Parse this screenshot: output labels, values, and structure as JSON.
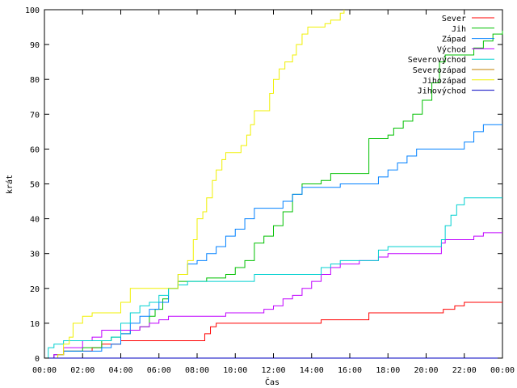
{
  "chart_data": {
    "type": "line",
    "step": true,
    "title": "",
    "xlabel": "Čas",
    "ylabel": "krát",
    "xlim": [
      0,
      24
    ],
    "ylim": [
      0,
      100
    ],
    "x_ticks": [
      "00:00",
      "02:00",
      "04:00",
      "06:00",
      "08:00",
      "10:00",
      "12:00",
      "14:00",
      "16:00",
      "18:00",
      "20:00",
      "22:00",
      "00:00"
    ],
    "y_ticks": [
      0,
      10,
      20,
      30,
      40,
      50,
      60,
      70,
      80,
      90,
      100
    ],
    "grid": false,
    "legend_position": "top-right",
    "series": [
      {
        "name": "Sever",
        "color": "#ff0000",
        "points": [
          [
            0,
            0
          ],
          [
            0.5,
            1
          ],
          [
            1.0,
            2
          ],
          [
            2.5,
            3
          ],
          [
            3.0,
            4
          ],
          [
            4.0,
            5
          ],
          [
            8.0,
            5
          ],
          [
            8.4,
            7
          ],
          [
            8.7,
            9
          ],
          [
            9.0,
            10
          ],
          [
            14.0,
            10
          ],
          [
            14.5,
            11
          ],
          [
            16.5,
            11
          ],
          [
            17.0,
            13
          ],
          [
            20.5,
            13
          ],
          [
            20.9,
            14
          ],
          [
            21.5,
            15
          ],
          [
            22.0,
            16
          ],
          [
            24,
            16
          ]
        ]
      },
      {
        "name": "Jih",
        "color": "#00c000",
        "points": [
          [
            0,
            0
          ],
          [
            0.7,
            1
          ],
          [
            1.0,
            2
          ],
          [
            2.0,
            3
          ],
          [
            3.0,
            5
          ],
          [
            3.5,
            6
          ],
          [
            4.0,
            7
          ],
          [
            4.5,
            8
          ],
          [
            5.0,
            9
          ],
          [
            5.5,
            12
          ],
          [
            5.8,
            14
          ],
          [
            6.2,
            17
          ],
          [
            6.5,
            20
          ],
          [
            7.0,
            22
          ],
          [
            8.0,
            22
          ],
          [
            8.5,
            23
          ],
          [
            9.5,
            24
          ],
          [
            10.0,
            26
          ],
          [
            10.5,
            28
          ],
          [
            11.0,
            33
          ],
          [
            11.5,
            35
          ],
          [
            12.0,
            38
          ],
          [
            12.5,
            42
          ],
          [
            13.0,
            47
          ],
          [
            13.5,
            50
          ],
          [
            14.5,
            51
          ],
          [
            15.0,
            53
          ],
          [
            16.5,
            53
          ],
          [
            17.0,
            63
          ],
          [
            18.0,
            64
          ],
          [
            18.3,
            66
          ],
          [
            18.8,
            68
          ],
          [
            19.3,
            70
          ],
          [
            19.8,
            74
          ],
          [
            20.3,
            79
          ],
          [
            20.7,
            85
          ],
          [
            21.0,
            87
          ],
          [
            22.0,
            87
          ],
          [
            22.5,
            89
          ],
          [
            23.0,
            91
          ],
          [
            23.5,
            93
          ],
          [
            24,
            94
          ]
        ]
      },
      {
        "name": "Západ",
        "color": "#0080ff",
        "points": [
          [
            0,
            0
          ],
          [
            0.5,
            1
          ],
          [
            1.0,
            2
          ],
          [
            3.0,
            3
          ],
          [
            3.5,
            4
          ],
          [
            4.0,
            7
          ],
          [
            4.5,
            10
          ],
          [
            5.0,
            12
          ],
          [
            5.5,
            14
          ],
          [
            6.0,
            16
          ],
          [
            6.5,
            20
          ],
          [
            7.0,
            24
          ],
          [
            7.5,
            27
          ],
          [
            8.0,
            28
          ],
          [
            8.5,
            30
          ],
          [
            9.0,
            32
          ],
          [
            9.5,
            35
          ],
          [
            10.0,
            37
          ],
          [
            10.5,
            40
          ],
          [
            11.0,
            43
          ],
          [
            12.0,
            43
          ],
          [
            12.5,
            45
          ],
          [
            13.0,
            47
          ],
          [
            13.5,
            49
          ],
          [
            15.0,
            49
          ],
          [
            15.5,
            50
          ],
          [
            17.0,
            50
          ],
          [
            17.5,
            52
          ],
          [
            18.0,
            54
          ],
          [
            18.5,
            56
          ],
          [
            19.0,
            58
          ],
          [
            19.5,
            60
          ],
          [
            21.5,
            60
          ],
          [
            22.0,
            62
          ],
          [
            22.5,
            65
          ],
          [
            23.0,
            67
          ],
          [
            24,
            67
          ]
        ]
      },
      {
        "name": "Východ",
        "color": "#c000ff",
        "points": [
          [
            0,
            0
          ],
          [
            0.5,
            1
          ],
          [
            1.0,
            3
          ],
          [
            2.0,
            5
          ],
          [
            2.5,
            6
          ],
          [
            3.0,
            8
          ],
          [
            4.0,
            8
          ],
          [
            5.0,
            9
          ],
          [
            5.5,
            10
          ],
          [
            6.0,
            11
          ],
          [
            6.5,
            12
          ],
          [
            9.0,
            12
          ],
          [
            9.5,
            13
          ],
          [
            11.0,
            13
          ],
          [
            11.5,
            14
          ],
          [
            12.0,
            15
          ],
          [
            12.5,
            17
          ],
          [
            13.0,
            18
          ],
          [
            13.5,
            20
          ],
          [
            14.0,
            22
          ],
          [
            14.5,
            24
          ],
          [
            15.0,
            26
          ],
          [
            15.5,
            27
          ],
          [
            16.5,
            28
          ],
          [
            17.5,
            29
          ],
          [
            18.0,
            30
          ],
          [
            20.5,
            30
          ],
          [
            20.8,
            33
          ],
          [
            21.0,
            34
          ],
          [
            22.5,
            35
          ],
          [
            23.0,
            36
          ],
          [
            24,
            36
          ]
        ]
      },
      {
        "name": "Severovýchod",
        "color": "#00d0d0",
        "points": [
          [
            0,
            0
          ],
          [
            0.2,
            3
          ],
          [
            0.5,
            4
          ],
          [
            1.0,
            5
          ],
          [
            3.0,
            5
          ],
          [
            3.5,
            6
          ],
          [
            4.0,
            10
          ],
          [
            4.5,
            13
          ],
          [
            5.0,
            15
          ],
          [
            5.5,
            16
          ],
          [
            6.0,
            18
          ],
          [
            6.5,
            20
          ],
          [
            7.0,
            21
          ],
          [
            7.5,
            22
          ],
          [
            10.0,
            22
          ],
          [
            11.0,
            24
          ],
          [
            14.0,
            24
          ],
          [
            14.5,
            26
          ],
          [
            15.0,
            27
          ],
          [
            15.5,
            28
          ],
          [
            17.0,
            28
          ],
          [
            17.5,
            31
          ],
          [
            18.0,
            32
          ],
          [
            20.5,
            32
          ],
          [
            20.8,
            34
          ],
          [
            21.0,
            38
          ],
          [
            21.3,
            41
          ],
          [
            21.6,
            44
          ],
          [
            22.0,
            46
          ],
          [
            24,
            46
          ]
        ]
      },
      {
        "name": "Severozápad",
        "color": "#c08000",
        "points": [
          [
            0,
            0
          ],
          [
            24,
            0
          ]
        ]
      },
      {
        "name": "Jihozápad",
        "color": "#f0f000",
        "points": [
          [
            0,
            0
          ],
          [
            0.7,
            1
          ],
          [
            1.0,
            4
          ],
          [
            1.3,
            6
          ],
          [
            1.5,
            10
          ],
          [
            2.0,
            12
          ],
          [
            2.5,
            13
          ],
          [
            3.5,
            13
          ],
          [
            4.0,
            16
          ],
          [
            4.5,
            20
          ],
          [
            6.5,
            20
          ],
          [
            7.0,
            24
          ],
          [
            7.5,
            28
          ],
          [
            7.8,
            34
          ],
          [
            8.0,
            40
          ],
          [
            8.3,
            42
          ],
          [
            8.5,
            46
          ],
          [
            8.8,
            51
          ],
          [
            9.0,
            54
          ],
          [
            9.3,
            57
          ],
          [
            9.5,
            59
          ],
          [
            10.0,
            59
          ],
          [
            10.3,
            61
          ],
          [
            10.6,
            64
          ],
          [
            10.8,
            67
          ],
          [
            11.0,
            71
          ],
          [
            11.5,
            71
          ],
          [
            11.8,
            76
          ],
          [
            12.0,
            80
          ],
          [
            12.3,
            83
          ],
          [
            12.6,
            85
          ],
          [
            13.0,
            87
          ],
          [
            13.2,
            90
          ],
          [
            13.5,
            93
          ],
          [
            13.8,
            95
          ],
          [
            14.5,
            95
          ],
          [
            14.7,
            96
          ],
          [
            15.0,
            97
          ],
          [
            15.5,
            99
          ],
          [
            15.7,
            100
          ]
        ]
      },
      {
        "name": "Jihovýchod",
        "color": "#0000c0",
        "points": [
          [
            0,
            0
          ],
          [
            24,
            0
          ]
        ]
      }
    ]
  }
}
